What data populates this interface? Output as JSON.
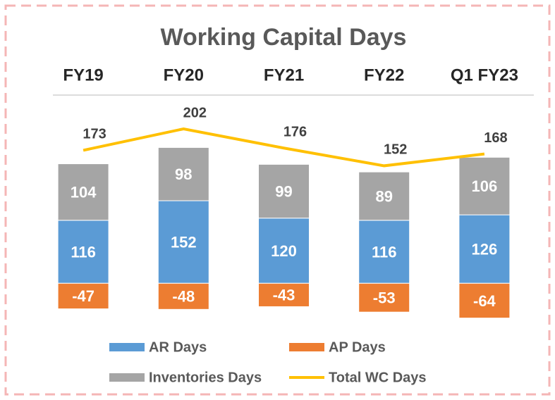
{
  "chart_data": {
    "type": "stacked-bar-line",
    "title": "Working Capital Days",
    "categories": [
      "FY19",
      "FY20",
      "FY21",
      "FY22",
      "Q1 FY23"
    ],
    "series": [
      {
        "name": "AR Days",
        "color": "#5b9bd5",
        "values": [
          116,
          152,
          120,
          116,
          126
        ]
      },
      {
        "name": "AP Days",
        "color": "#ed7d31",
        "values": [
          -47,
          -48,
          -43,
          -53,
          -64
        ]
      },
      {
        "name": "Inventories Days",
        "color": "#a5a5a5",
        "values": [
          104,
          98,
          99,
          89,
          106
        ]
      },
      {
        "name": "Total WC Days",
        "color": "#ffc000",
        "values": [
          173,
          202,
          176,
          152,
          168
        ],
        "axis": "y2"
      }
    ],
    "ylim": [
      -80,
      340
    ],
    "y2lim": [
      -66,
      243
    ],
    "legend": "bottom"
  }
}
